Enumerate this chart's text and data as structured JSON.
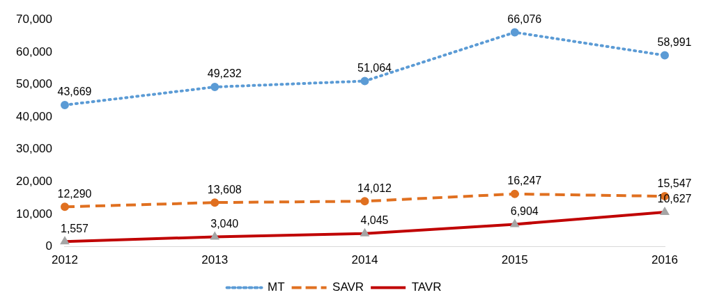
{
  "chart_data": {
    "type": "line",
    "categories": [
      "2012",
      "2013",
      "2014",
      "2015",
      "2016"
    ],
    "ylim": [
      0,
      70000
    ],
    "yticks": [
      {
        "value": 0,
        "label": "0"
      },
      {
        "value": 10000,
        "label": "10,000"
      },
      {
        "value": 20000,
        "label": "20,000"
      },
      {
        "value": 30000,
        "label": "30,000"
      },
      {
        "value": 40000,
        "label": "40,000"
      },
      {
        "value": 50000,
        "label": "50,000"
      },
      {
        "value": 60000,
        "label": "60,000"
      },
      {
        "value": 70000,
        "label": "70,000"
      }
    ],
    "grid": false,
    "legend": "bottom",
    "series": [
      {
        "name": "MT",
        "color": "#5b9bd5",
        "values": [
          43669,
          49232,
          51064,
          66076,
          58991
        ],
        "value_labels": [
          "43,669",
          "49,232",
          "51,064",
          "66,076",
          "58,991"
        ],
        "line_style": "dotted",
        "marker": "circle"
      },
      {
        "name": "SAVR",
        "color": "#e07020",
        "values": [
          12290,
          13608,
          14012,
          16247,
          15547
        ],
        "value_labels": [
          "12,290",
          "13,608",
          "14,012",
          "16,247",
          "15,547"
        ],
        "line_style": "dashed",
        "marker": "circle"
      },
      {
        "name": "TAVR",
        "color": "#c00000",
        "values": [
          1557,
          3040,
          4045,
          6904,
          10627
        ],
        "value_labels": [
          "1,557",
          "3,040",
          "4,045",
          "6,904",
          "10,627"
        ],
        "line_style": "solid",
        "marker": "triangle"
      }
    ]
  }
}
